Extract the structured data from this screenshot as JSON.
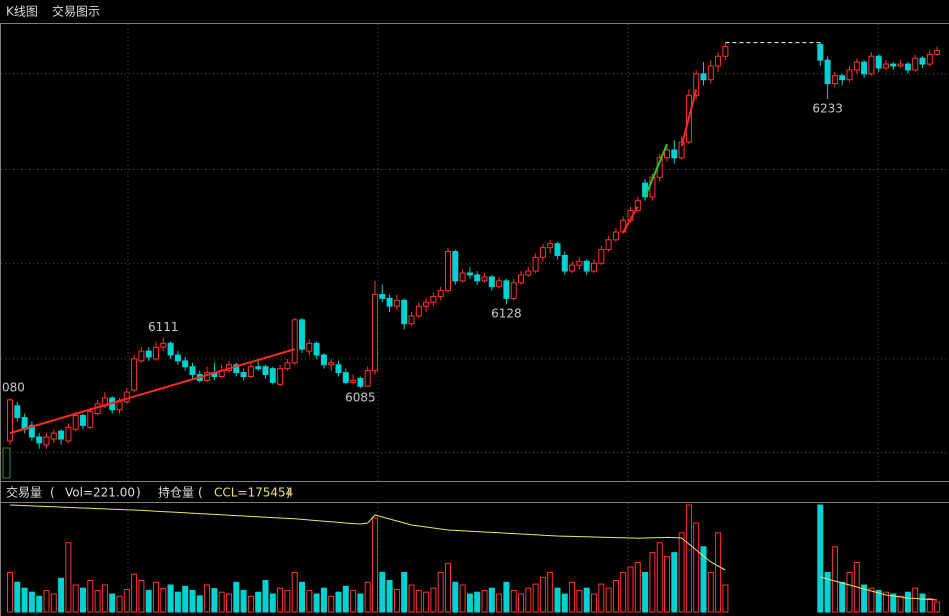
{
  "tabs": [
    "K线图",
    "交易图示"
  ],
  "chart_data": {
    "type": "candlestick",
    "volume_title": "交易量",
    "volume_readout": "Vol=221.00",
    "oi_title": "持仓量",
    "oi_readout": "CCL=175454",
    "ylim": [
      6038,
      6271
    ],
    "yticks": [
      6052,
      6100,
      6149,
      6197,
      6246
    ],
    "grid": true,
    "vlim": [
      0,
      2400
    ],
    "y2lim": [
      174254,
      185254
    ],
    "up_color": "#ff3232",
    "down_color": "#00d2d2",
    "oi_color": "#e8e860",
    "candles": [
      [
        6058,
        6080,
        6056,
        6079
      ],
      [
        6076,
        6078,
        6068,
        6070
      ],
      [
        6070,
        6072,
        6062,
        6064
      ],
      [
        6066,
        6068,
        6058,
        6060
      ],
      [
        6060,
        6062,
        6054,
        6057
      ],
      [
        6056,
        6062,
        6054,
        6060
      ],
      [
        6059,
        6064,
        6057,
        6062
      ],
      [
        6063,
        6064,
        6056,
        6059
      ],
      [
        6058,
        6067,
        6057,
        6065
      ],
      [
        6064,
        6073,
        6063,
        6071
      ],
      [
        6071,
        6072,
        6064,
        6066
      ],
      [
        6065,
        6075,
        6064,
        6073
      ],
      [
        6072,
        6079,
        6071,
        6077
      ],
      [
        6076,
        6083,
        6075,
        6080
      ],
      [
        6080,
        6081,
        6072,
        6074
      ],
      [
        6074,
        6080,
        6072,
        6078
      ],
      [
        6078,
        6085,
        6077,
        6083
      ],
      [
        6084,
        6102,
        6083,
        6100
      ],
      [
        6099,
        6106,
        6098,
        6104
      ],
      [
        6104,
        6106,
        6099,
        6101
      ],
      [
        6100,
        6109,
        6099,
        6106
      ],
      [
        6106,
        6111,
        6104,
        6108
      ],
      [
        6108,
        6109,
        6100,
        6102
      ],
      [
        6102,
        6104,
        6097,
        6099
      ],
      [
        6099,
        6101,
        6094,
        6096
      ],
      [
        6096,
        6098,
        6090,
        6092
      ],
      [
        6092,
        6094,
        6088,
        6089
      ],
      [
        6089,
        6096,
        6088,
        6093
      ],
      [
        6093,
        6098,
        6089,
        6091
      ],
      [
        6091,
        6097,
        6090,
        6094
      ],
      [
        6094,
        6099,
        6093,
        6097
      ],
      [
        6097,
        6098,
        6091,
        6093
      ],
      [
        6093,
        6095,
        6089,
        6091
      ],
      [
        6091,
        6098,
        6090,
        6096
      ],
      [
        6096,
        6100,
        6094,
        6095
      ],
      [
        6096,
        6097,
        6090,
        6092
      ],
      [
        6095,
        6096,
        6087,
        6088
      ],
      [
        6087,
        6097,
        6086,
        6095
      ],
      [
        6095,
        6100,
        6094,
        6098
      ],
      [
        6098,
        6121,
        6097,
        6120
      ],
      [
        6120,
        6121,
        6103,
        6105
      ],
      [
        6104,
        6110,
        6102,
        6108
      ],
      [
        6108,
        6109,
        6100,
        6102
      ],
      [
        6102,
        6103,
        6095,
        6097
      ],
      [
        6097,
        6100,
        6094,
        6098
      ],
      [
        6097,
        6099,
        6091,
        6093
      ],
      [
        6093,
        6095,
        6087,
        6088
      ],
      [
        6088,
        6092,
        6087,
        6089
      ],
      [
        6090,
        6091,
        6085,
        6086
      ],
      [
        6086,
        6096,
        6086,
        6094
      ],
      [
        6094,
        6140,
        6092,
        6133
      ],
      [
        6133,
        6138,
        6129,
        6131
      ],
      [
        6131,
        6133,
        6124,
        6127
      ],
      [
        6127,
        6133,
        6125,
        6130
      ],
      [
        6130,
        6131,
        6115,
        6118
      ],
      [
        6118,
        6124,
        6117,
        6122
      ],
      [
        6122,
        6129,
        6121,
        6127
      ],
      [
        6127,
        6131,
        6124,
        6129
      ],
      [
        6129,
        6134,
        6127,
        6132
      ],
      [
        6132,
        6137,
        6130,
        6135
      ],
      [
        6135,
        6157,
        6134,
        6155
      ],
      [
        6155,
        6156,
        6138,
        6140
      ],
      [
        6140,
        6146,
        6139,
        6144
      ],
      [
        6144,
        6147,
        6141,
        6143
      ],
      [
        6143,
        6145,
        6138,
        6140
      ],
      [
        6140,
        6144,
        6139,
        6142
      ],
      [
        6142,
        6143,
        6135,
        6137
      ],
      [
        6137,
        6142,
        6136,
        6140
      ],
      [
        6140,
        6141,
        6128,
        6131
      ],
      [
        6131,
        6141,
        6130,
        6139
      ],
      [
        6139,
        6145,
        6138,
        6143
      ],
      [
        6143,
        6147,
        6142,
        6145
      ],
      [
        6145,
        6154,
        6144,
        6152
      ],
      [
        6152,
        6159,
        6150,
        6157
      ],
      [
        6157,
        6161,
        6154,
        6159
      ],
      [
        6159,
        6160,
        6151,
        6153
      ],
      [
        6153,
        6155,
        6143,
        6145
      ],
      [
        6145,
        6150,
        6144,
        6148
      ],
      [
        6148,
        6152,
        6146,
        6150
      ],
      [
        6150,
        6151,
        6143,
        6145
      ],
      [
        6145,
        6151,
        6144,
        6149
      ],
      [
        6149,
        6158,
        6148,
        6156
      ],
      [
        6156,
        6163,
        6155,
        6161
      ],
      [
        6161,
        6167,
        6160,
        6165
      ],
      [
        6165,
        6173,
        6164,
        6171
      ],
      [
        6171,
        6178,
        6170,
        6176
      ],
      [
        6176,
        6183,
        6175,
        6181
      ],
      [
        6190,
        6192,
        6181,
        6183
      ],
      [
        6183,
        6195,
        6181,
        6193
      ],
      [
        6193,
        6205,
        6191,
        6203
      ],
      [
        6203,
        6209,
        6201,
        6207
      ],
      [
        6207,
        6212,
        6200,
        6203
      ],
      [
        6203,
        6214,
        6202,
        6211
      ],
      [
        6211,
        6238,
        6210,
        6235
      ],
      [
        6235,
        6248,
        6233,
        6246
      ],
      [
        6246,
        6252,
        6240,
        6243
      ],
      [
        6243,
        6253,
        6241,
        6250
      ],
      [
        6250,
        6257,
        6247,
        6255
      ],
      [
        6255,
        6262,
        6253,
        6260
      ],
      null,
      null,
      null,
      null,
      null,
      null,
      null,
      null,
      null,
      null,
      null,
      null,
      [
        6261,
        6262,
        6250,
        6253
      ],
      [
        6253,
        6255,
        6233,
        6241
      ],
      [
        6241,
        6247,
        6239,
        6245
      ],
      [
        6245,
        6246,
        6240,
        6243
      ],
      [
        6243,
        6250,
        6242,
        6248
      ],
      [
        6248,
        6254,
        6246,
        6252
      ],
      [
        6252,
        6253,
        6244,
        6246
      ],
      [
        6246,
        6257,
        6245,
        6255
      ],
      [
        6255,
        6256,
        6247,
        6249
      ],
      [
        6249,
        6253,
        6248,
        6251
      ],
      [
        6251,
        6252,
        6248,
        6250
      ],
      [
        6250,
        6253,
        6249,
        6251
      ],
      [
        6251,
        6252,
        6246,
        6248
      ],
      [
        6248,
        6256,
        6247,
        6254
      ],
      [
        6254,
        6255,
        6249,
        6251
      ],
      [
        6251,
        6258,
        6250,
        6256
      ],
      [
        6256,
        6260,
        6255,
        6258
      ]
    ],
    "volume": [
      880,
      660,
      530,
      440,
      350,
      480,
      400,
      750,
      1540,
      600,
      530,
      700,
      480,
      600,
      400,
      350,
      500,
      840,
      700,
      480,
      660,
      520,
      600,
      440,
      570,
      480,
      360,
      600,
      520,
      440,
      400,
      660,
      480,
      350,
      440,
      700,
      400,
      530,
      480,
      880,
      660,
      480,
      400,
      530,
      350,
      440,
      570,
      480,
      400,
      660,
      2090,
      880,
      700,
      500,
      880,
      600,
      480,
      440,
      530,
      880,
      1080,
      660,
      600,
      400,
      440,
      480,
      530,
      400,
      660,
      480,
      400,
      530,
      620,
      770,
      880,
      530,
      400,
      660,
      480,
      530,
      400,
      620,
      530,
      700,
      880,
      1000,
      1100,
      880,
      1320,
      1540,
      1230,
      1320,
      1760,
      2376,
      1980,
      1450,
      880,
      1760,
      600,
      null,
      null,
      null,
      null,
      null,
      null,
      null,
      null,
      null,
      null,
      null,
      null,
      2376,
      880,
      1450,
      660,
      880,
      1100,
      600,
      530,
      480,
      440,
      400,
      350,
      440,
      530,
      400,
      300,
      221
    ],
    "open_interest": [
      184954,
      184924,
      184894,
      184864,
      184834,
      184804,
      184774,
      184744,
      184714,
      184684,
      184654,
      184624,
      184594,
      184564,
      184534,
      184504,
      184474,
      184454,
      184414,
      184374,
      184334,
      184294,
      184254,
      184214,
      184174,
      184134,
      184094,
      184054,
      184014,
      183974,
      183934,
      183894,
      183854,
      183814,
      183774,
      183734,
      183694,
      183654,
      183614,
      183574,
      183514,
      183454,
      183394,
      183334,
      183274,
      183214,
      183154,
      183094,
      183054,
      183154,
      183954,
      183754,
      183554,
      183354,
      183154,
      182954,
      182854,
      182754,
      182654,
      182554,
      182454,
      182414,
      182374,
      182334,
      182294,
      182254,
      182214,
      182174,
      182134,
      182094,
      182054,
      182014,
      181974,
      181934,
      181894,
      181854,
      181834,
      181814,
      181794,
      181774,
      181754,
      181734,
      181714,
      181694,
      181674,
      181654,
      181634,
      181654,
      181674,
      181694,
      181714,
      181694,
      181654,
      181054,
      180454,
      179854,
      179254,
      178854,
      178454,
      null,
      null,
      null,
      null,
      null,
      null,
      null,
      null,
      null,
      null,
      null,
      null,
      177754,
      177554,
      177354,
      177154,
      176954,
      176754,
      176554,
      176354,
      176154,
      175954,
      175854,
      175754,
      175654,
      175604,
      175554,
      175504,
      175454
    ],
    "annotations": [
      {
        "label": "080",
        "at": 0,
        "side": "high"
      },
      {
        "label": "6111",
        "at": 21,
        "side": "high"
      },
      {
        "label": "6085",
        "at": 48,
        "side": "low"
      },
      {
        "label": "6128",
        "at": 68,
        "side": "low"
      },
      {
        "label": "6233",
        "at": 112,
        "side": "low"
      }
    ],
    "lines": [
      {
        "from": [
          0,
          6062
        ],
        "to": [
          39,
          6105
        ],
        "color": "#ff2828",
        "dashed": false
      },
      {
        "from": [
          84,
          6165
        ],
        "to": [
          86,
          6178
        ],
        "color": "#ff2828",
        "dashed": false
      },
      {
        "from": [
          87,
          6183
        ],
        "to": [
          90,
          6210
        ],
        "color": "#22cc22",
        "dashed": false
      },
      {
        "from": [
          92,
          6209
        ],
        "to": [
          94,
          6238
        ],
        "color": "#ff2828",
        "dashed": false
      },
      {
        "from": [
          98,
          6262
        ],
        "to": [
          111,
          6262
        ],
        "color": "#ffffff",
        "dashed": true
      }
    ]
  }
}
